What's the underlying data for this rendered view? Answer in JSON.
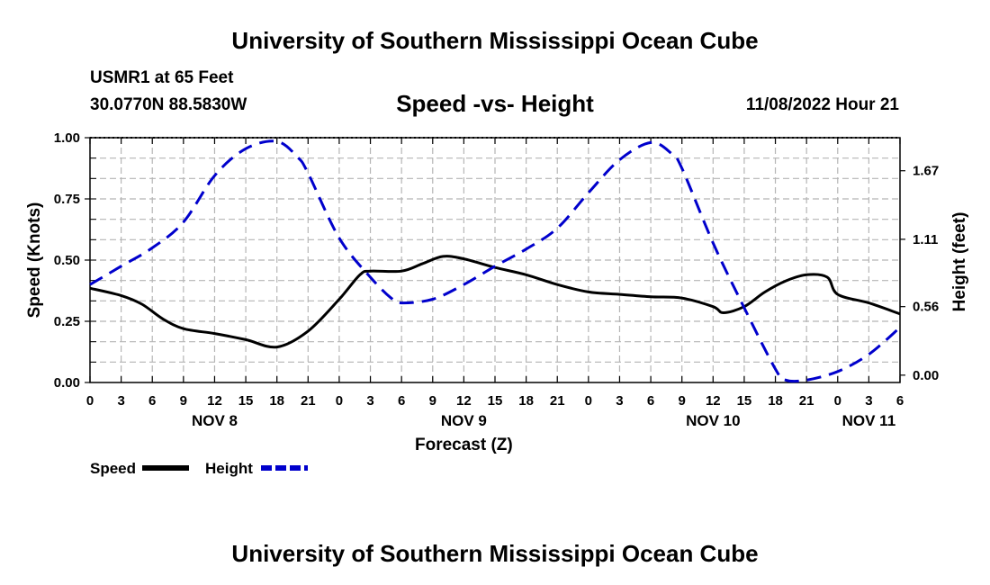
{
  "header": {
    "title": "University of Southern Mississippi Ocean Cube",
    "station": "USMR1 at 65 Feet",
    "coords": "30.0770N  88.5830W",
    "subtitle": "Speed -vs- Height",
    "datetime": "11/08/2022 Hour 21"
  },
  "footer": {
    "title": "University of Southern Mississippi Ocean Cube"
  },
  "chart_data": {
    "type": "line",
    "title": "Speed -vs- Height",
    "xlabel": "Forecast (Z)",
    "ylabel": "Speed (Knots)",
    "y2label": "Height (feet)",
    "xlim": [
      0,
      78
    ],
    "ylim": [
      0,
      1
    ],
    "y2lim": [
      -0.06,
      1.94
    ],
    "grid": true,
    "x_tick_values": [
      0,
      3,
      6,
      9,
      12,
      15,
      18,
      21,
      24,
      27,
      30,
      33,
      36,
      39,
      42,
      45,
      48,
      51,
      54,
      57,
      60,
      63,
      66,
      69,
      72,
      75,
      78
    ],
    "x_tick_labels": [
      "0",
      "3",
      "6",
      "9",
      "12",
      "15",
      "18",
      "21",
      "0",
      "3",
      "6",
      "9",
      "12",
      "15",
      "18",
      "21",
      "0",
      "3",
      "6",
      "9",
      "12",
      "15",
      "18",
      "21",
      "0",
      "3",
      "6"
    ],
    "day_labels": [
      {
        "x": 12,
        "label": "NOV 8"
      },
      {
        "x": 36,
        "label": "NOV 9"
      },
      {
        "x": 60,
        "label": "NOV 10"
      },
      {
        "x": 75,
        "label": "NOV 11"
      }
    ],
    "y_ticks": [
      "0.00",
      "0.25",
      "0.50",
      "0.75",
      "1.00"
    ],
    "y_tick_values": [
      0,
      0.25,
      0.5,
      0.75,
      1.0
    ],
    "y2_ticks": [
      "0.00",
      "0.56",
      "1.11",
      "1.67"
    ],
    "y2_tick_values": [
      0,
      0.56,
      1.11,
      1.67
    ],
    "series": [
      {
        "name": "Speed",
        "color": "#000000",
        "style": "solid",
        "axis": "left",
        "x": [
          0,
          3,
          5,
          7,
          9,
          12,
          15,
          18,
          21,
          24,
          26,
          27,
          30,
          32,
          34,
          36,
          39,
          42,
          45,
          48,
          51,
          54,
          57,
          60,
          61,
          63,
          65,
          67,
          69,
          71,
          72,
          75,
          78
        ],
        "values": [
          0.385,
          0.355,
          0.32,
          0.26,
          0.22,
          0.2,
          0.175,
          0.145,
          0.21,
          0.34,
          0.44,
          0.455,
          0.455,
          0.485,
          0.515,
          0.505,
          0.47,
          0.44,
          0.4,
          0.37,
          0.36,
          0.35,
          0.345,
          0.31,
          0.285,
          0.31,
          0.37,
          0.415,
          0.44,
          0.43,
          0.36,
          0.325,
          0.28
        ]
      },
      {
        "name": "Height",
        "color": "#0000cc",
        "style": "dashed",
        "axis": "right",
        "x": [
          0,
          3,
          6,
          9,
          12,
          15,
          18,
          20,
          21,
          24,
          27,
          29,
          30,
          33,
          36,
          39,
          42,
          45,
          48,
          51,
          54,
          56,
          57,
          60,
          63,
          66,
          67,
          69,
          72,
          75,
          78
        ],
        "values": [
          0.74,
          0.89,
          1.04,
          1.25,
          1.63,
          1.85,
          1.91,
          1.78,
          1.65,
          1.12,
          0.8,
          0.63,
          0.59,
          0.62,
          0.74,
          0.89,
          1.03,
          1.2,
          1.49,
          1.76,
          1.9,
          1.81,
          1.69,
          1.08,
          0.55,
          0.05,
          -0.04,
          -0.04,
          0.03,
          0.17,
          0.39
        ]
      }
    ],
    "legend": {
      "placement": "bottom-left",
      "items": [
        {
          "label": "Speed",
          "color": "#000000",
          "style": "solid"
        },
        {
          "label": "Height",
          "color": "#0000cc",
          "style": "dashed"
        }
      ]
    }
  }
}
